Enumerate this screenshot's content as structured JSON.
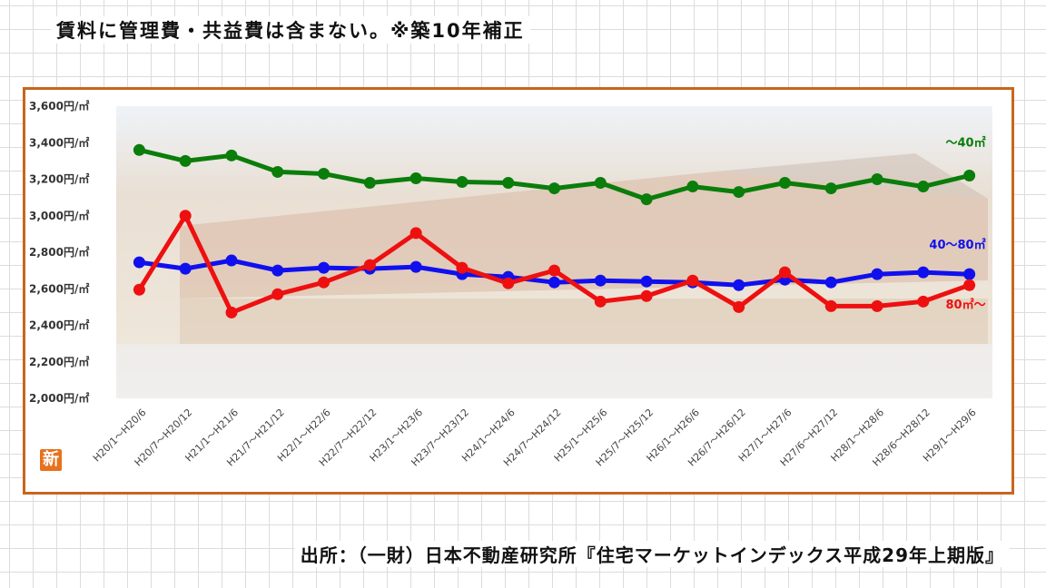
{
  "header": {
    "note": "賃料に管理費・共益費は含まない。※築10年補正"
  },
  "footer": {
    "source": "出所：（一財）日本不動産研究所『住宅マーケットインデックス平成29年上期版』"
  },
  "badge": {
    "label": "新"
  },
  "chart_data": {
    "type": "line",
    "title": "",
    "xlabel": "",
    "ylabel": "",
    "ylim": [
      2000,
      3600
    ],
    "yticks": [
      2000,
      2200,
      2400,
      2600,
      2800,
      3000,
      3200,
      3400,
      3600
    ],
    "ytick_labels": [
      "2,000円/㎡",
      "2,200円/㎡",
      "2,400円/㎡",
      "2,600円/㎡",
      "2,800円/㎡",
      "3,000円/㎡",
      "3,200円/㎡",
      "3,400円/㎡",
      "3,600円/㎡"
    ],
    "categories": [
      "H20/1～H20/6",
      "H20/7～H20/12",
      "H21/1～H21/6",
      "H21/7～H21/12",
      "H22/1～H22/6",
      "H22/7～H22/12",
      "H23/1～H23/6",
      "H23/7～H23/12",
      "H24/1～H24/6",
      "H24/7～H24/12",
      "H25/1～H25/6",
      "H25/7～H25/12",
      "H26/1～H26/6",
      "H26/7～H26/12",
      "H27/1～H27/6",
      "H27/6～H27/12",
      "H28/1～H28/6",
      "H28/6～H28/12",
      "H29/1～H29/6"
    ],
    "grid": false,
    "series": [
      {
        "name": "～40㎡",
        "color": "#0a7d0a",
        "values": [
          3360,
          3300,
          3330,
          3240,
          3230,
          3180,
          3205,
          3185,
          3180,
          3150,
          3180,
          3090,
          3160,
          3130,
          3180,
          3150,
          3200,
          3160,
          3220
        ]
      },
      {
        "name": "40～80㎡",
        "color": "#1010ee",
        "values": [
          2745,
          2710,
          2755,
          2700,
          2715,
          2710,
          2720,
          2680,
          2665,
          2635,
          2645,
          2640,
          2635,
          2620,
          2650,
          2635,
          2680,
          2690,
          2680
        ]
      },
      {
        "name": "80㎡～",
        "color": "#ee1010",
        "values": [
          2595,
          3000,
          2470,
          2570,
          2635,
          2730,
          2905,
          2715,
          2630,
          2700,
          2530,
          2560,
          2645,
          2500,
          2690,
          2505,
          2505,
          2530,
          2620
        ]
      }
    ]
  }
}
